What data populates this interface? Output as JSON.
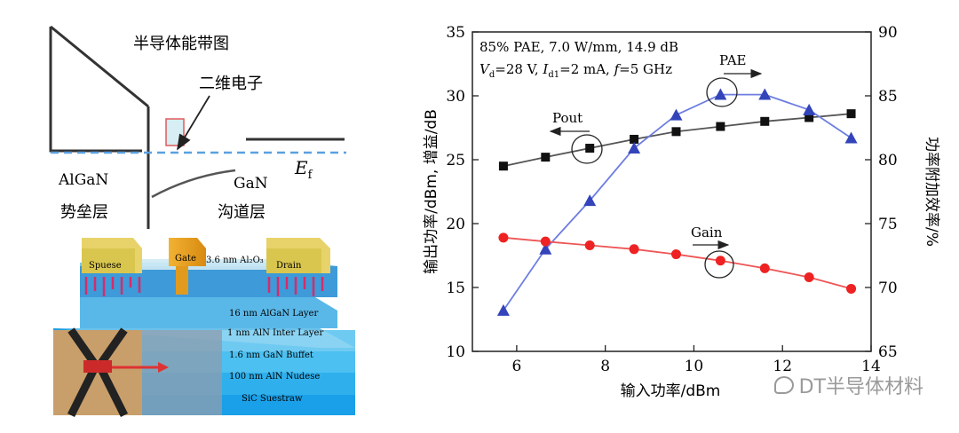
{
  "left": {
    "band_title": "半导体能带图",
    "electron_label": "二维电子",
    "ef_label": "E",
    "ef_sub": "f",
    "algan_label": "AlGaN",
    "barrier_label": "势垒层",
    "gan_label": "GaN",
    "channel_label": "沟道层",
    "device": {
      "source": "Spuese",
      "gate": "Gate",
      "drain": "Drain",
      "oxide": "3.6 nm Al₂O₃",
      "layers": [
        "16 nm AlGaN Layer",
        "1 nm AlN Inter Layer",
        "1.6 nm GaN Buffet",
        "100 nm AlN Nudese",
        "SiC Suestraw"
      ]
    }
  },
  "watermark": "DT半导体材料",
  "chart_data": {
    "type": "line",
    "annotation_line1": "85% PAE, 7.0 W/mm, 14.9 dB",
    "annotation_line2_parts": {
      "v": "V",
      "v_sub": "d",
      "v_val": "=28 V, ",
      "i": "I",
      "i_sub": "d1",
      "i_val": "=2 mA, ",
      "f": "f",
      "f_val": "=5 GHz"
    },
    "xlabel": "输入功率/dBm",
    "ylabel_left": "输出功率/dBm, 增益/dB",
    "ylabel_right": "功率附加效率/%",
    "xlim": [
      5,
      14
    ],
    "ylim_left": [
      10,
      35
    ],
    "ylim_right": [
      65,
      90
    ],
    "x_ticks": [
      6,
      8,
      10,
      12,
      14
    ],
    "y_ticks_left": [
      10,
      15,
      20,
      25,
      30,
      35
    ],
    "y_ticks_right": [
      65,
      70,
      75,
      80,
      85,
      90
    ],
    "series": [
      {
        "name": "Pout",
        "axis": "left",
        "color": "#111111",
        "marker": "square",
        "x": [
          5.7,
          6.65,
          7.65,
          8.65,
          9.6,
          10.6,
          11.6,
          12.6,
          13.55
        ],
        "y": [
          24.5,
          25.2,
          25.9,
          26.6,
          27.2,
          27.6,
          28.0,
          28.3,
          28.6
        ]
      },
      {
        "name": "PAE",
        "axis": "right",
        "color": "#3344bb",
        "marker": "triangle",
        "x": [
          5.7,
          6.65,
          7.65,
          8.65,
          9.6,
          10.6,
          11.6,
          12.6,
          13.55
        ],
        "y": [
          68.2,
          73.0,
          76.8,
          80.9,
          83.5,
          85.1,
          85.1,
          83.9,
          81.7
        ]
      },
      {
        "name": "Gain",
        "axis": "left",
        "color": "#ee2222",
        "marker": "circle",
        "x": [
          5.7,
          6.65,
          7.65,
          8.65,
          9.6,
          10.6,
          11.6,
          12.6,
          13.55
        ],
        "y": [
          18.9,
          18.6,
          18.3,
          18.0,
          17.6,
          17.1,
          16.5,
          15.8,
          14.9
        ]
      }
    ],
    "labels": {
      "pout": "Pout",
      "pae": "PAE",
      "gain": "Gain"
    }
  }
}
